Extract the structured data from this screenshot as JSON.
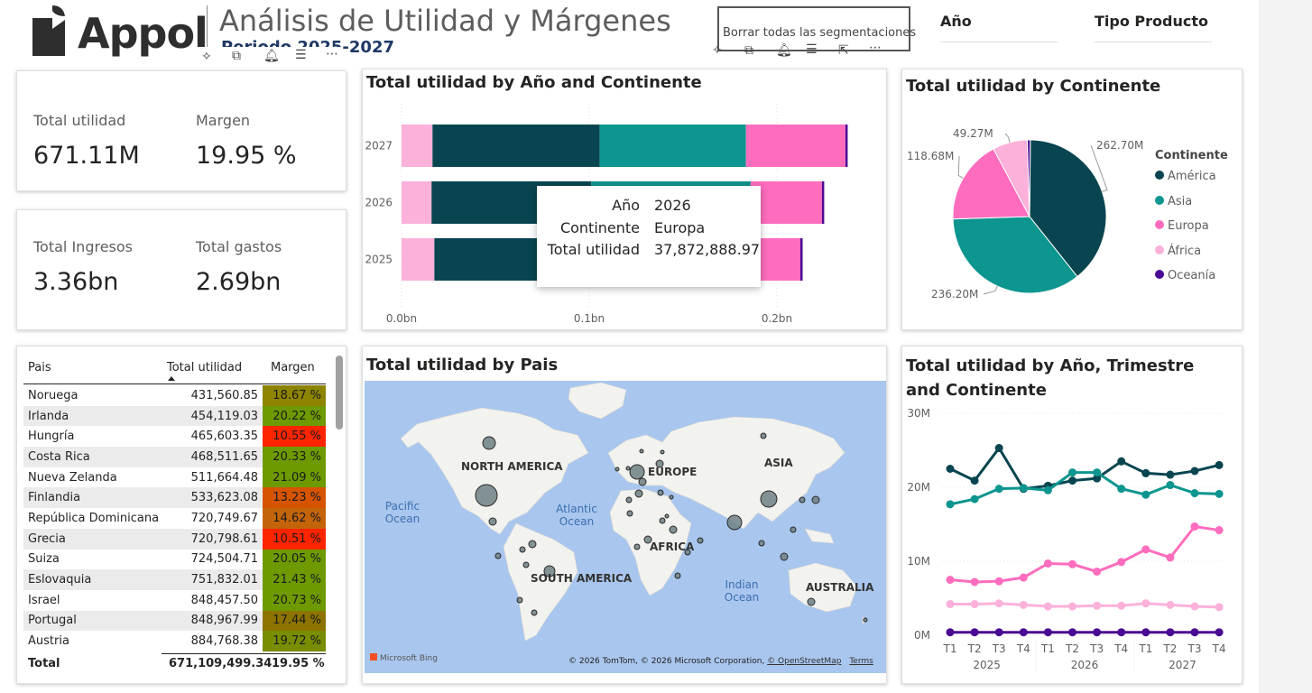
{
  "header": {
    "logo_text": "Appol",
    "title": "Análisis de Utilidad y Márgenes",
    "subtitle": "Periodo 2025-2027",
    "clear_button": "Borrar todas las segmentaciones",
    "slicer_year": "Año",
    "slicer_product": "Tipo Producto"
  },
  "icons": {
    "pin": "pin-icon",
    "copy": "copy-icon",
    "bell": "bell-icon",
    "filter": "filter-icon",
    "more": "more-icon",
    "focus": "focus-mode-icon"
  },
  "kpis": {
    "total_utilidad": {
      "label": "Total utilidad",
      "value": "671.11M"
    },
    "margen": {
      "label": "Margen",
      "value": "19.95 %"
    },
    "total_ingresos": {
      "label": "Total Ingresos",
      "value": "3.36bn"
    },
    "total_gastos": {
      "label": "Total gastos",
      "value": "2.69bn"
    }
  },
  "colors": {
    "america": "#094550",
    "asia": "#0d958f",
    "europa": "#fd6cbd",
    "africa": "#fbb1d9",
    "oceania": "#4a0a94",
    "map_water": "#a9c6ee",
    "map_land": "#f2f2ef"
  },
  "bar_chart": {
    "title": "Total utilidad by Año and Continente",
    "tooltip": {
      "rows": [
        {
          "label": "Año",
          "value": "2026"
        },
        {
          "label": "Continente",
          "value": "Europa"
        },
        {
          "label": "Total utilidad",
          "value": "37,872,888.97"
        }
      ]
    },
    "chart_data": {
      "type": "bar",
      "orientation": "horizontal-stacked",
      "categories": [
        "2027",
        "2026",
        "2025"
      ],
      "series": [
        {
          "name": "África",
          "values": [
            16.5,
            16.0,
            17.5
          ]
        },
        {
          "name": "América",
          "values": [
            89.0,
            85.0,
            87.0
          ]
        },
        {
          "name": "Asia",
          "values": [
            78.0,
            85.0,
            72.0
          ]
        },
        {
          "name": "Europa",
          "values": [
            53.0,
            38.0,
            36.0
          ]
        },
        {
          "name": "Oceanía",
          "values": [
            1.2,
            1.2,
            1.2
          ]
        }
      ],
      "xticks": [
        "0.0bn",
        "0.1bn",
        "0.2bn"
      ],
      "xlim": [
        0,
        240
      ],
      "unit": "M"
    }
  },
  "pie_chart": {
    "title": "Total utilidad by Continente",
    "legend_title": "Continente",
    "chart_data": {
      "type": "pie",
      "slices": [
        {
          "name": "América",
          "value": 262.7,
          "label": "262.70M",
          "color": "#094550"
        },
        {
          "name": "Asia",
          "value": 236.2,
          "label": "236.20M",
          "color": "#0d958f"
        },
        {
          "name": "Europa",
          "value": 118.68,
          "label": "118.68M",
          "color": "#fd6cbd"
        },
        {
          "name": "África",
          "value": 49.27,
          "label": "49.27M",
          "color": "#fbb1d9"
        },
        {
          "name": "Oceanía",
          "value": 4.26,
          "label": "",
          "color": "#4a0a94"
        }
      ]
    }
  },
  "table": {
    "headers": {
      "pais": "Pais",
      "utilidad": "Total utilidad",
      "margen": "Margen"
    },
    "rows": [
      {
        "pais": "Noruega",
        "utilidad": "431,560.85",
        "margen": "18.67 %",
        "color": "#8d8400"
      },
      {
        "pais": "Irlanda",
        "utilidad": "454,119.03",
        "margen": "20.22 %",
        "color": "#6e9a00"
      },
      {
        "pais": "Hungría",
        "utilidad": "465,603.35",
        "margen": "10.55 %",
        "color": "#ff2400"
      },
      {
        "pais": "Costa Rica",
        "utilidad": "468,511.65",
        "margen": "20.33 %",
        "color": "#6e9a00"
      },
      {
        "pais": "Nueva Zelanda",
        "utilidad": "511,664.48",
        "margen": "21.09 %",
        "color": "#6e9a00"
      },
      {
        "pais": "Finlandia",
        "utilidad": "533,623.08",
        "margen": "13.23 %",
        "color": "#d65400"
      },
      {
        "pais": "República Dominicana",
        "utilidad": "720,749.67",
        "margen": "14.62 %",
        "color": "#c4640a"
      },
      {
        "pais": "Grecia",
        "utilidad": "720,798.61",
        "margen": "10.51 %",
        "color": "#ff2400"
      },
      {
        "pais": "Suiza",
        "utilidad": "724,504.71",
        "margen": "20.05 %",
        "color": "#6e9a00"
      },
      {
        "pais": "Eslovaquia",
        "utilidad": "751,832.01",
        "margen": "21.43 %",
        "color": "#6e9a00"
      },
      {
        "pais": "Israel",
        "utilidad": "848,457.50",
        "margen": "20.73 %",
        "color": "#6e9a00"
      },
      {
        "pais": "Portugal",
        "utilidad": "848,967.99",
        "margen": "17.44 %",
        "color": "#8d7400"
      },
      {
        "pais": "Austria",
        "utilidad": "884,768.38",
        "margen": "19.72 %",
        "color": "#7a8c00"
      }
    ],
    "total": {
      "label": "Total",
      "utilidad": "671,109,499.34",
      "margen": "19.95 %"
    }
  },
  "map": {
    "title": "Total utilidad by Pais",
    "labels": {
      "north_america": "NORTH AMERICA",
      "europe": "EUROPE",
      "asia": "ASIA",
      "africa": "AFRICA",
      "south_america": "SOUTH AMERICA",
      "australia": "AUSTRALIA",
      "pacific": "Pacific Ocean",
      "atlantic": "Atlantic Ocean",
      "indian": "Indian Ocean"
    },
    "bing": "Microsoft Bing",
    "copyright": "© 2026 TomTom, © 2026 Microsoft Corporation,",
    "osm": "© OpenStreetMap",
    "terms": "Terms"
  },
  "line_chart": {
    "title": "Total utilidad by Año, Trimestre and Continente",
    "chart_data": {
      "type": "line",
      "quarters": [
        "T1",
        "T2",
        "T3",
        "T4",
        "T1",
        "T2",
        "T3",
        "T4",
        "T1",
        "T2",
        "T3",
        "T4"
      ],
      "years": [
        "2025",
        "2026",
        "2027"
      ],
      "yticks": [
        "30M",
        "20M",
        "10M",
        "0M"
      ],
      "ylim": [
        0,
        30
      ],
      "series": [
        {
          "name": "América",
          "color": "#094550",
          "values": [
            22.5,
            20.9,
            25.3,
            19.8,
            20.2,
            20.9,
            21.2,
            23.5,
            21.9,
            21.7,
            22.2,
            23.0
          ]
        },
        {
          "name": "Asia",
          "color": "#0d958f",
          "values": [
            17.7,
            18.4,
            19.8,
            19.9,
            19.6,
            22.0,
            22.0,
            19.8,
            19.0,
            20.3,
            19.2,
            19.1
          ]
        },
        {
          "name": "Europa",
          "color": "#fd6cbd",
          "values": [
            7.5,
            7.2,
            7.3,
            7.8,
            9.7,
            9.6,
            8.6,
            9.9,
            11.6,
            10.5,
            14.7,
            14.2
          ]
        },
        {
          "name": "África",
          "color": "#fbb1d9",
          "values": [
            4.2,
            4.2,
            4.3,
            4.1,
            3.9,
            3.9,
            4.0,
            4.0,
            4.3,
            4.1,
            3.9,
            3.8
          ]
        },
        {
          "name": "Oceanía",
          "color": "#4a0a94",
          "values": [
            0.4,
            0.4,
            0.4,
            0.4,
            0.4,
            0.4,
            0.4,
            0.4,
            0.4,
            0.4,
            0.4,
            0.4
          ]
        }
      ]
    }
  }
}
